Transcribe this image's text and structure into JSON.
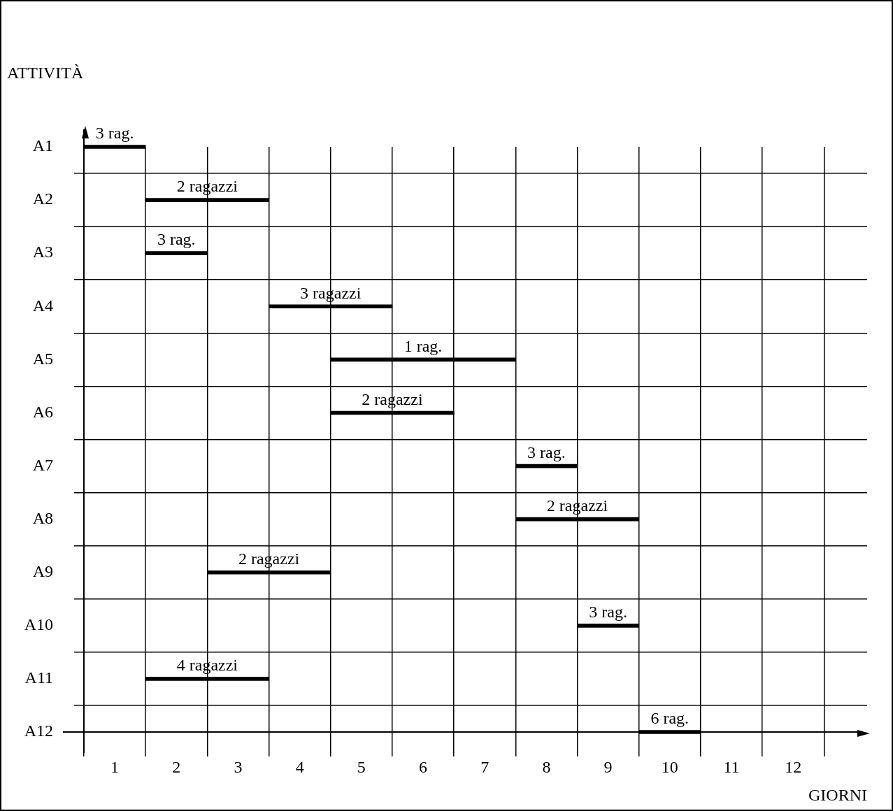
{
  "chart_data": {
    "type": "bar",
    "orientation": "horizontal",
    "xlabel": "GIORNI",
    "ylabel": "ATTIVITÀ",
    "categories": [
      "A1",
      "A2",
      "A3",
      "A4",
      "A5",
      "A6",
      "A7",
      "A8",
      "A9",
      "A10",
      "A11",
      "A12"
    ],
    "base": [
      0,
      1,
      1,
      3,
      4,
      4,
      7,
      7,
      2,
      8,
      1,
      9
    ],
    "values": [
      1,
      2,
      1,
      2,
      3,
      2,
      1,
      2,
      2,
      1,
      2,
      1
    ],
    "annotations": [
      {
        "text": "3 rag.",
        "x": 0.5,
        "y": "A1"
      },
      {
        "text": "2 ragazzi",
        "x": 2,
        "y": "A2"
      },
      {
        "text": "3 rag.",
        "x": 1.5,
        "y": "A3"
      },
      {
        "text": "3 ragazzi",
        "x": 4,
        "y": "A4"
      },
      {
        "text": "1 rag.",
        "x": 5.5,
        "y": "A5"
      },
      {
        "text": "2 ragazzi",
        "x": 5,
        "y": "A6"
      },
      {
        "text": "3 rag.",
        "x": 7.5,
        "y": "A7"
      },
      {
        "text": "2 ragazzi",
        "x": 8,
        "y": "A8"
      },
      {
        "text": "2 ragazzi",
        "x": 3,
        "y": "A9"
      },
      {
        "text": "3 rag.",
        "x": 8.5,
        "y": "A10"
      },
      {
        "text": "4 ragazzi",
        "x": 2,
        "y": "A11"
      },
      {
        "text": "6 rag.",
        "x": 9.5,
        "y": "A12"
      }
    ],
    "color": "#000000",
    "xlim": [
      0,
      12.7
    ],
    "xticks": [
      {
        "value": 0,
        "label": null
      },
      {
        "value": 0.5,
        "label": "1"
      },
      {
        "value": 1,
        "label": null
      },
      {
        "value": 1.5,
        "label": "2"
      },
      {
        "value": 2,
        "label": null
      },
      {
        "value": 2.5,
        "label": "3"
      },
      {
        "value": 3,
        "label": null
      },
      {
        "value": 3.5,
        "label": "4"
      },
      {
        "value": 4,
        "label": null
      },
      {
        "value": 4.5,
        "label": "5"
      },
      {
        "value": 5,
        "label": null
      },
      {
        "value": 5.5,
        "label": "6"
      },
      {
        "value": 6,
        "label": null
      },
      {
        "value": 6.5,
        "label": "7"
      },
      {
        "value": 7,
        "label": null
      },
      {
        "value": 7.5,
        "label": "8"
      },
      {
        "value": 8,
        "label": null
      },
      {
        "value": 8.5,
        "label": "9"
      },
      {
        "value": 9,
        "label": null
      },
      {
        "value": 9.5,
        "label": "10"
      },
      {
        "value": 10,
        "label": null
      },
      {
        "value": 10.5,
        "label": "11"
      },
      {
        "value": 11,
        "label": null
      },
      {
        "value": 11.5,
        "label": "12"
      },
      {
        "value": 12,
        "label": null
      }
    ],
    "grid": true,
    "legend": false
  }
}
